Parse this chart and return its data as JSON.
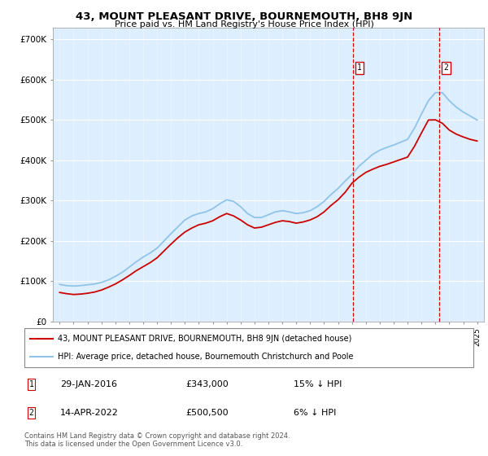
{
  "title": "43, MOUNT PLEASANT DRIVE, BOURNEMOUTH, BH8 9JN",
  "subtitle": "Price paid vs. HM Land Registry's House Price Index (HPI)",
  "legend_line1": "43, MOUNT PLEASANT DRIVE, BOURNEMOUTH, BH8 9JN (detached house)",
  "legend_line2": "HPI: Average price, detached house, Bournemouth Christchurch and Poole",
  "footnote": "Contains HM Land Registry data © Crown copyright and database right 2024.\nThis data is licensed under the Open Government Licence v3.0.",
  "transaction1": {
    "label": "1",
    "date": "29-JAN-2016",
    "price": "£343,000",
    "hpi": "15% ↓ HPI",
    "year": 2016.08
  },
  "transaction2": {
    "label": "2",
    "date": "14-APR-2022",
    "price": "£500,500",
    "hpi": "6% ↓ HPI",
    "year": 2022.28
  },
  "hpi_color": "#8fc4e8",
  "price_color": "#cc0000",
  "background_color": "#ddeeff",
  "ylim": [
    0,
    730000
  ],
  "xlim": [
    1994.5,
    2025.5
  ],
  "hpi_x": [
    1995,
    1995.5,
    1996,
    1996.5,
    1997,
    1997.5,
    1998,
    1998.5,
    1999,
    1999.5,
    2000,
    2000.5,
    2001,
    2001.5,
    2002,
    2002.5,
    2003,
    2003.5,
    2004,
    2004.5,
    2005,
    2005.5,
    2006,
    2006.5,
    2007,
    2007.5,
    2008,
    2008.5,
    2009,
    2009.5,
    2010,
    2010.5,
    2011,
    2011.5,
    2012,
    2012.5,
    2013,
    2013.5,
    2014,
    2014.5,
    2015,
    2015.5,
    2016,
    2016.5,
    2017,
    2017.5,
    2018,
    2018.5,
    2019,
    2019.5,
    2020,
    2020.5,
    2021,
    2021.5,
    2022,
    2022.5,
    2023,
    2023.5,
    2024,
    2024.5,
    2025
  ],
  "hpi_y": [
    92000,
    89000,
    88000,
    89000,
    91000,
    93000,
    97000,
    103000,
    112000,
    122000,
    135000,
    148000,
    160000,
    170000,
    182000,
    200000,
    218000,
    235000,
    252000,
    262000,
    268000,
    272000,
    280000,
    292000,
    302000,
    298000,
    285000,
    268000,
    258000,
    258000,
    265000,
    272000,
    275000,
    272000,
    268000,
    270000,
    275000,
    285000,
    298000,
    315000,
    330000,
    348000,
    365000,
    385000,
    400000,
    415000,
    425000,
    432000,
    438000,
    445000,
    452000,
    480000,
    515000,
    548000,
    568000,
    568000,
    548000,
    532000,
    520000,
    510000,
    500000
  ],
  "price_x": [
    1995,
    1995.5,
    1996,
    1996.5,
    1997,
    1997.5,
    1998,
    1998.5,
    1999,
    1999.5,
    2000,
    2000.5,
    2001,
    2001.5,
    2002,
    2002.5,
    2003,
    2003.5,
    2004,
    2004.5,
    2005,
    2005.5,
    2006,
    2006.5,
    2007,
    2007.5,
    2008,
    2008.5,
    2009,
    2009.5,
    2010,
    2010.5,
    2011,
    2011.5,
    2012,
    2012.5,
    2013,
    2013.5,
    2014,
    2014.5,
    2015,
    2015.5,
    2016,
    2016.5,
    2017,
    2017.5,
    2018,
    2018.5,
    2019,
    2019.5,
    2020,
    2020.5,
    2021,
    2021.5,
    2022,
    2022.5,
    2023,
    2023.5,
    2024,
    2024.5,
    2025
  ],
  "price_y": [
    72000,
    69000,
    67000,
    68000,
    70000,
    73000,
    78000,
    85000,
    93000,
    103000,
    114000,
    126000,
    136000,
    146000,
    158000,
    175000,
    192000,
    208000,
    222000,
    232000,
    240000,
    244000,
    250000,
    260000,
    268000,
    262000,
    252000,
    240000,
    232000,
    234000,
    240000,
    246000,
    250000,
    248000,
    244000,
    247000,
    252000,
    260000,
    272000,
    288000,
    302000,
    320000,
    343000,
    358000,
    370000,
    378000,
    385000,
    390000,
    396000,
    402000,
    408000,
    435000,
    468000,
    500000,
    500500,
    492000,
    475000,
    465000,
    458000,
    452000,
    448000
  ]
}
